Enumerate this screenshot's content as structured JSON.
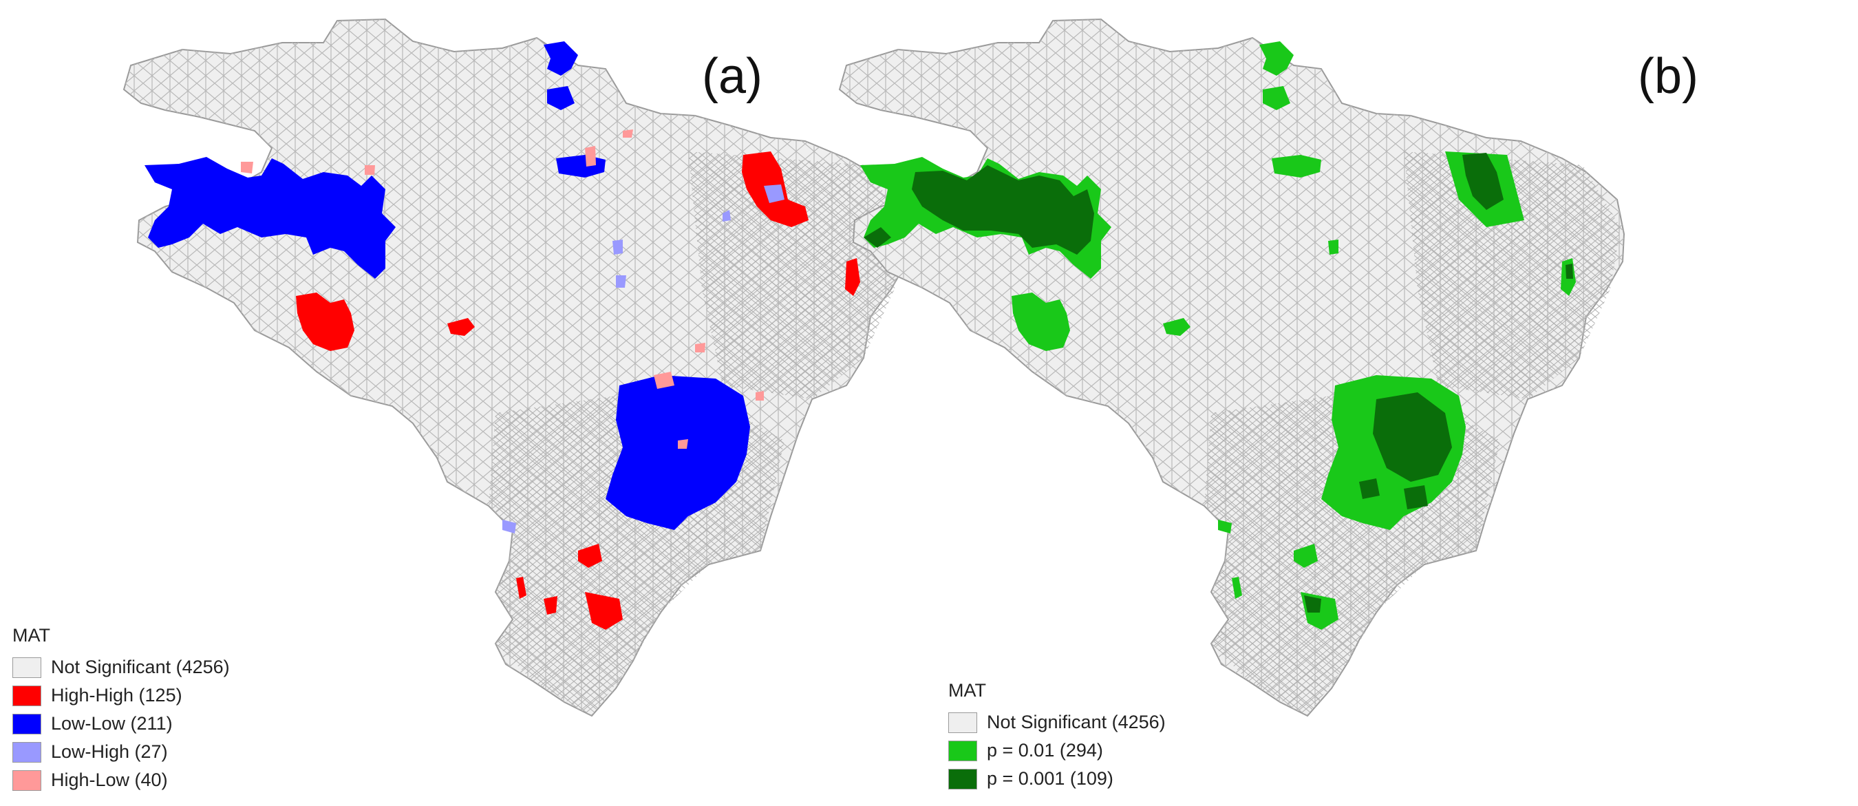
{
  "panels": [
    {
      "id": "a",
      "label": "(a)",
      "legend": {
        "title": "MAT",
        "items": [
          {
            "label": "Not Significant (4256)",
            "color": "#efefef"
          },
          {
            "label": "High-High (125)",
            "color": "#ff0000"
          },
          {
            "label": "Low-Low (211)",
            "color": "#0000ff"
          },
          {
            "label": "Low-High (27)",
            "color": "#9999ff"
          },
          {
            "label": "High-Low (40)",
            "color": "#ff9999"
          }
        ]
      }
    },
    {
      "id": "b",
      "label": "(b)",
      "legend": {
        "title": "MAT",
        "items": [
          {
            "label": "Not Significant (4256)",
            "color": "#efefef"
          },
          {
            "label": "p = 0.01 (294)",
            "color": "#19c819"
          },
          {
            "label": "p = 0.001 (109)",
            "color": "#0a6e0a"
          }
        ]
      }
    }
  ],
  "colors": {
    "not_significant": "#efefef",
    "boundary": "#b4b4b4",
    "high_high": "#ff0000",
    "low_low": "#0000ff",
    "low_high": "#9999ff",
    "high_low": "#ff9999",
    "p01": "#19c819",
    "p001": "#0a6e0a"
  }
}
